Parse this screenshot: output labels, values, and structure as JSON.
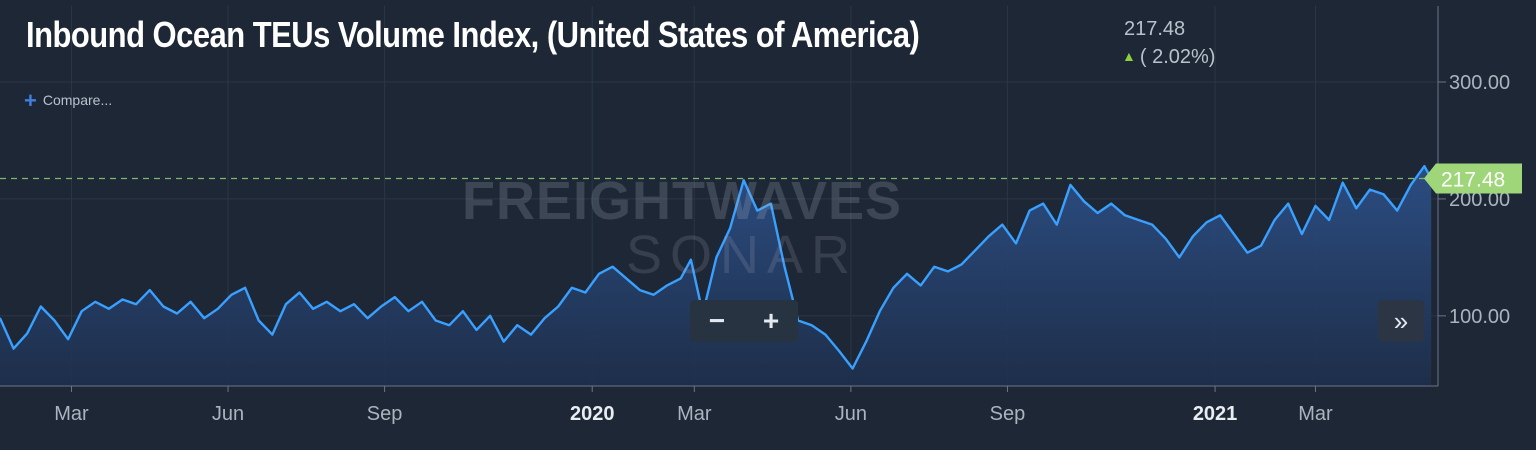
{
  "header": {
    "title": "Inbound Ocean TEUs Volume Index, (United States of America)",
    "last_value": "217.48",
    "change": "( 2.02%)",
    "compare_label": "Compare..."
  },
  "watermark": {
    "line1": "FREIGHTWAVES",
    "line2": "SONAR"
  },
  "controls": {
    "zoom_out": "−",
    "zoom_in": "+",
    "scroll_right": "»"
  },
  "colors": {
    "background": "#1e2735",
    "line": "#3aa0ff",
    "area_top": "#2c4f86",
    "last_tag": "#9fd67a",
    "reference_line": "#7fb86a"
  },
  "chart_data": {
    "type": "area",
    "title": "Inbound Ocean TEUs Volume Index, (United States of America)",
    "y_ticks": [
      100,
      200,
      300
    ],
    "y_tick_labels": [
      "100.00",
      "200.00",
      "300.00"
    ],
    "ylim": [
      40,
      365
    ],
    "x_ticks": [
      "2019-03-01",
      "2019-06-01",
      "2019-09-01",
      "2020-01-01",
      "2020-03-01",
      "2020-06-01",
      "2020-09-01",
      "2021-01-01",
      "2021-03-01"
    ],
    "x_tick_labels": [
      "Mar",
      "Jun",
      "Sep",
      "2020",
      "Mar",
      "Jun",
      "Sep",
      "2021",
      "Mar"
    ],
    "xlim": [
      "2019-01-18",
      "2021-05-12"
    ],
    "last_value": 217.48,
    "last_value_label": "217.48",
    "reference_line": 217.48,
    "grid": true,
    "series": [
      {
        "x": [
          "2019-01-18",
          "2019-01-26",
          "2019-02-03",
          "2019-02-11",
          "2019-02-19",
          "2019-02-27",
          "2019-03-07",
          "2019-03-15",
          "2019-03-23",
          "2019-03-31",
          "2019-04-08",
          "2019-04-16",
          "2019-04-24",
          "2019-05-02",
          "2019-05-10",
          "2019-05-18",
          "2019-05-26",
          "2019-06-03",
          "2019-06-11",
          "2019-06-19",
          "2019-06-27",
          "2019-07-05",
          "2019-07-13",
          "2019-07-21",
          "2019-07-29",
          "2019-08-06",
          "2019-08-14",
          "2019-08-22",
          "2019-08-30",
          "2019-09-07",
          "2019-09-15",
          "2019-09-23",
          "2019-10-01",
          "2019-10-09",
          "2019-10-17",
          "2019-10-25",
          "2019-11-02",
          "2019-11-10",
          "2019-11-18",
          "2019-11-26",
          "2019-12-04",
          "2019-12-12",
          "2019-12-20",
          "2019-12-28",
          "2020-01-05",
          "2020-01-13",
          "2020-01-21",
          "2020-01-29",
          "2020-02-06",
          "2020-02-14",
          "2020-02-22",
          "2020-02-28",
          "2020-03-06",
          "2020-03-14",
          "2020-03-22",
          "2020-03-30",
          "2020-04-07",
          "2020-04-15",
          "2020-04-23",
          "2020-05-01",
          "2020-05-09",
          "2020-05-17",
          "2020-05-25",
          "2020-06-02",
          "2020-06-10",
          "2020-06-18",
          "2020-06-26",
          "2020-07-04",
          "2020-07-12",
          "2020-07-20",
          "2020-07-28",
          "2020-08-05",
          "2020-08-13",
          "2020-08-21",
          "2020-08-29",
          "2020-09-06",
          "2020-09-14",
          "2020-09-22",
          "2020-09-30",
          "2020-10-08",
          "2020-10-16",
          "2020-10-24",
          "2020-11-01",
          "2020-11-09",
          "2020-11-17",
          "2020-11-25",
          "2020-12-03",
          "2020-12-11",
          "2020-12-19",
          "2020-12-27",
          "2021-01-04",
          "2021-01-12",
          "2021-01-20",
          "2021-01-28",
          "2021-02-05",
          "2021-02-13",
          "2021-02-21",
          "2021-03-01",
          "2021-03-09",
          "2021-03-17",
          "2021-03-25",
          "2021-04-02",
          "2021-04-10",
          "2021-04-18",
          "2021-04-26",
          "2021-05-04",
          "2021-05-08"
        ],
        "values": [
          98,
          72,
          85,
          108,
          96,
          80,
          104,
          112,
          106,
          114,
          110,
          122,
          108,
          102,
          112,
          98,
          106,
          118,
          124,
          96,
          84,
          110,
          120,
          106,
          112,
          104,
          110,
          98,
          108,
          116,
          104,
          112,
          96,
          92,
          104,
          88,
          100,
          78,
          92,
          84,
          98,
          108,
          124,
          120,
          136,
          142,
          132,
          122,
          118,
          126,
          132,
          148,
          102,
          150,
          175,
          216,
          190,
          196,
          142,
          96,
          92,
          84,
          70,
          55,
          78,
          104,
          124,
          136,
          126,
          142,
          138,
          144,
          156,
          168,
          178,
          162,
          190,
          196,
          178,
          212,
          198,
          188,
          196,
          186,
          182,
          178,
          166,
          150,
          168,
          180,
          186,
          170,
          154,
          160,
          182,
          196,
          170,
          194,
          182,
          214,
          192,
          208,
          204,
          190,
          212,
          228,
          217.48
        ]
      }
    ]
  }
}
